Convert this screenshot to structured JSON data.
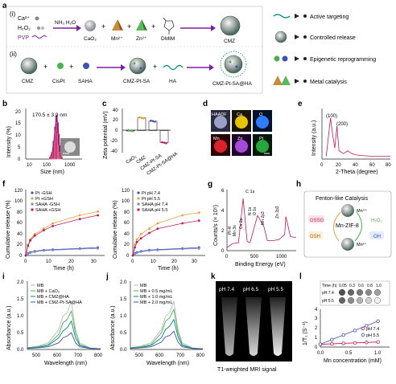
{
  "panel_letters": {
    "a": "a",
    "b": "b",
    "c": "c",
    "d": "d",
    "e": "e",
    "f": "f",
    "g": "g",
    "h": "h",
    "i": "i",
    "j": "j",
    "k": "k",
    "l": "l"
  },
  "scheme": {
    "row_i": {
      "label": "(i)",
      "reagents_top": "Ca²⁺",
      "reagents_mid": "H₂O₂",
      "reagents_bot": "PVP",
      "arrow1": "NH₃ H₂O",
      "cao2": "CaO₂",
      "mn": "Mn²⁺",
      "zn": "Zn²⁺",
      "dmim": "DMIM",
      "product": "CMZ",
      "plus": "+"
    },
    "row_ii": {
      "label": "(ii)",
      "cmz": "CMZ",
      "cispt": "CisPt",
      "saha": "SAHA",
      "inter": "CMZ-Pt-SA",
      "ha": "HA",
      "product": "CMZ-Pt-SA@HA",
      "plus": "+"
    },
    "legend": [
      "Active targeting",
      "Controlled release",
      "Epigenetic reprogramming",
      "Metal catalysis"
    ]
  },
  "panel_b": {
    "annotation": "170.5 ± 3.9 nm",
    "xlabel": "Size (nm)",
    "ylabel": "Intensity (%)",
    "xticks": [
      "10",
      "100",
      "1000"
    ],
    "yticks": [
      "0",
      "5",
      "10",
      "15",
      "20"
    ]
  },
  "panel_c": {
    "ylabel": "Zeta potential (mV)",
    "yticks": [
      "40",
      "20",
      "0",
      "-20",
      "-40"
    ],
    "categories": [
      "CaO₂",
      "CMZ",
      "CMZ-Pt-SA",
      "CMZ-Pt-SA@HA"
    ]
  },
  "panel_d": {
    "labels": [
      "HAADF",
      "Ca",
      "O",
      "Mn",
      "Zn",
      "Pt"
    ]
  },
  "panel_e": {
    "xlabel": "2-Theta (degree)",
    "ylabel": "Intensity (a.u.)",
    "xticks": [
      "0",
      "20",
      "40",
      "60",
      "80"
    ],
    "peak1": "(100)",
    "peak2": "(200)"
  },
  "panel_f": {
    "left_legend": [
      "Pt -GSH",
      "Pt +GSH",
      "SAHA -GSH",
      "SAHA +GSH"
    ],
    "right_legend": [
      "Pt pH 7.4",
      "Pt pH 5.5",
      "SAHA pH 7.4",
      "SAHA pH 5.5"
    ],
    "xlabel": "Time (h)",
    "ylabel": "Cumulative release (%)",
    "xticks": [
      "0",
      "10",
      "20",
      "30"
    ],
    "yticks": [
      "0",
      "20",
      "40",
      "60",
      "80",
      "100",
      "120"
    ]
  },
  "panel_g": {
    "xlabel": "Binding Energy (eV)",
    "ylabel": "Counts/s (× 10⁵)",
    "xticks": [
      "0",
      "500",
      "1000"
    ],
    "yticks": [
      "0",
      "2",
      "4",
      "6"
    ],
    "peaks": [
      "Pt 4f",
      "Mn 3s",
      "Ca 2p",
      "O 1s",
      "N 1s",
      "C 1s",
      "Mn 2p3",
      "Zn 2p3"
    ]
  },
  "panel_h": {
    "title": "Fenton-like Catalysis",
    "center": "Mn-ZIF-8",
    "gssg": "GSSG",
    "gsh": "GSH",
    "h2o2": "H₂O₂",
    "oh": "·OH",
    "mn4": "Mn⁴⁺",
    "mn2": "Mn²⁺"
  },
  "panel_i": {
    "legend": [
      "MB",
      "MB + CaO₂",
      "MB + CMZ@HA",
      "MB + CMZ-Pt-SA@HA"
    ],
    "xlabel": "Wavelength (nm)",
    "ylabel": "Absorbance (a.u.)",
    "xticks": [
      "500",
      "600",
      "700",
      "800"
    ],
    "yticks": [
      "0.0",
      "0.5",
      "1.0",
      "1.5",
      "2.0"
    ]
  },
  "panel_j": {
    "legend": [
      "MB",
      "MB + 0.5 mg/mL",
      "MB + 1.0 mg/mL",
      "MB + 2.0 mg/mL"
    ],
    "xlabel": "Wavelength (nm)",
    "ylabel": "Absorbance (a.u.)",
    "xticks": [
      "500",
      "600",
      "700",
      "800"
    ],
    "yticks": [
      "0.0",
      "0.5",
      "1.0",
      "1.5",
      "2.0"
    ]
  },
  "panel_k": {
    "labels": [
      "pH 7.4",
      "pH 6.5",
      "pH 5.5"
    ],
    "caption": "T1-weighted MRI signal"
  },
  "panel_l": {
    "time_label": "Time (h)",
    "times": [
      "0.05",
      "0.3",
      "0.6",
      "0.8",
      "1.0"
    ],
    "rows": [
      "pH 7.4",
      "pH 5.5"
    ],
    "xlabel": "Mn concentration (mM)",
    "ylabel": "1/T₁ (S⁻¹)",
    "xticks": [
      "0.0",
      "0.5",
      "1.0"
    ],
    "yticks": [
      "0",
      "1",
      "2",
      "3",
      "4"
    ],
    "legend": [
      "pH 7.4",
      "pH 5.5"
    ]
  },
  "chart_data": [
    {
      "type": "bar",
      "panel": "b",
      "x": [
        100,
        120,
        140,
        160,
        180,
        200,
        220,
        240,
        260,
        290
      ],
      "values": [
        1,
        3,
        8,
        14,
        19,
        16,
        11,
        6,
        3,
        1
      ],
      "xscale": "log",
      "xlim": [
        10,
        2000
      ],
      "ylim": [
        0,
        22
      ]
    },
    {
      "type": "bar",
      "panel": "c",
      "categories": [
        "CaO₂",
        "CMZ",
        "CMZ-Pt-SA",
        "CMZ-Pt-SA@HA"
      ],
      "values": [
        0,
        23,
        17,
        -22
      ],
      "ylim": [
        -40,
        40
      ]
    },
    {
      "type": "line",
      "panel": "e",
      "x": [
        5,
        7.5,
        10,
        12.5,
        15,
        17.5,
        20,
        25,
        30,
        35,
        40,
        50,
        60,
        70,
        80
      ],
      "values": [
        1,
        8,
        15,
        9,
        4,
        12,
        3,
        2,
        3,
        2,
        1.5,
        1.2,
        1,
        1,
        1
      ],
      "xlim": [
        0,
        80
      ]
    },
    {
      "type": "line",
      "panel": "f-left",
      "x": [
        0,
        1,
        2,
        4,
        8,
        12,
        24,
        32
      ],
      "series": [
        {
          "name": "Pt -GSH",
          "values": [
            0,
            4,
            6,
            8,
            10,
            11,
            13,
            15
          ]
        },
        {
          "name": "Pt +GSH",
          "values": [
            0,
            20,
            30,
            40,
            50,
            60,
            75,
            82
          ]
        },
        {
          "name": "SAHA -GSH",
          "values": [
            0,
            3,
            5,
            7,
            9,
            10,
            12,
            13
          ]
        },
        {
          "name": "SAHA +GSH",
          "values": [
            0,
            18,
            28,
            37,
            47,
            55,
            68,
            75
          ]
        }
      ],
      "xlim": [
        0,
        35
      ],
      "ylim": [
        0,
        120
      ]
    },
    {
      "type": "line",
      "panel": "f-right",
      "x": [
        0,
        1,
        2,
        4,
        8,
        12,
        24,
        32
      ],
      "series": [
        {
          "name": "Pt pH 7.4",
          "values": [
            0,
            4,
            6,
            8,
            10,
            11,
            13,
            15
          ]
        },
        {
          "name": "Pt pH 5.5",
          "values": [
            0,
            20,
            30,
            40,
            50,
            60,
            75,
            80
          ]
        },
        {
          "name": "SAHA pH 7.4",
          "values": [
            0,
            3,
            5,
            7,
            9,
            10,
            12,
            13
          ]
        },
        {
          "name": "SAHA pH 5.5",
          "values": [
            0,
            15,
            25,
            32,
            42,
            50,
            60,
            65
          ]
        }
      ],
      "xlim": [
        0,
        35
      ],
      "ylim": [
        0,
        120
      ]
    },
    {
      "type": "line",
      "panel": "g",
      "x": [
        0,
        70,
        100,
        200,
        280,
        350,
        400,
        530,
        640,
        700,
        800,
        900,
        1000,
        1020,
        1045,
        1100,
        1200
      ],
      "values": [
        0.3,
        0.6,
        0.7,
        0.8,
        5.2,
        0.9,
        0.8,
        3.5,
        2.4,
        1.0,
        1.0,
        1.1,
        1.6,
        3.4,
        2.8,
        1.4,
        1.3
      ],
      "xlim": [
        0,
        1200
      ],
      "ylim": [
        0,
        6
      ]
    },
    {
      "type": "line",
      "panel": "i",
      "x": [
        450,
        500,
        550,
        600,
        620,
        640,
        660,
        680,
        700,
        750,
        800
      ],
      "series": [
        {
          "name": "MB",
          "values": [
            0.05,
            0.1,
            0.2,
            0.6,
            1.0,
            1.1,
            1.45,
            0.6,
            0.2,
            0.05,
            0.02
          ]
        },
        {
          "name": "MB + CaO₂",
          "values": [
            0.05,
            0.08,
            0.15,
            0.45,
            0.8,
            0.9,
            1.15,
            0.5,
            0.15,
            0.04,
            0.02
          ]
        },
        {
          "name": "MB + CMZ@HA",
          "values": [
            0.04,
            0.06,
            0.12,
            0.35,
            0.55,
            0.65,
            0.85,
            0.35,
            0.12,
            0.03,
            0.02
          ]
        },
        {
          "name": "MB + CMZ-Pt-SA@HA",
          "values": [
            0.03,
            0.05,
            0.08,
            0.2,
            0.35,
            0.4,
            0.5,
            0.2,
            0.08,
            0.03,
            0.02
          ]
        }
      ],
      "xlim": [
        450,
        800
      ],
      "ylim": [
        0,
        2
      ]
    },
    {
      "type": "line",
      "panel": "j",
      "x": [
        450,
        500,
        550,
        600,
        620,
        640,
        660,
        680,
        700,
        750,
        800
      ],
      "series": [
        {
          "name": "MB",
          "values": [
            0.05,
            0.1,
            0.2,
            0.6,
            1.0,
            1.1,
            1.45,
            0.6,
            0.2,
            0.05,
            0.02
          ]
        },
        {
          "name": "MB + 0.5 mg/mL",
          "values": [
            0.05,
            0.08,
            0.15,
            0.5,
            0.85,
            0.95,
            1.2,
            0.5,
            0.15,
            0.04,
            0.02
          ]
        },
        {
          "name": "MB + 1.0 mg/mL",
          "values": [
            0.04,
            0.06,
            0.12,
            0.35,
            0.6,
            0.7,
            0.9,
            0.38,
            0.12,
            0.03,
            0.02
          ]
        },
        {
          "name": "MB + 2.0 mg/mL",
          "values": [
            0.03,
            0.05,
            0.08,
            0.22,
            0.38,
            0.42,
            0.55,
            0.22,
            0.08,
            0.03,
            0.02
          ]
        }
      ],
      "xlim": [
        450,
        800
      ],
      "ylim": [
        0,
        2
      ]
    },
    {
      "type": "scatter",
      "panel": "l",
      "x": [
        0,
        0.2,
        0.4,
        0.6,
        0.8,
        1.0
      ],
      "series": [
        {
          "name": "pH 7.4",
          "values": [
            0.3,
            0.35,
            0.4,
            0.45,
            0.5,
            0.55
          ]
        },
        {
          "name": "pH 5.5",
          "values": [
            0.3,
            0.8,
            1.3,
            1.8,
            2.3,
            2.8
          ]
        }
      ],
      "xlim": [
        0,
        1.2
      ],
      "ylim": [
        0,
        4
      ]
    }
  ],
  "colors": {
    "pink": "#c2185b",
    "orange": "#e6a23c",
    "blue": "#3f51b5",
    "green": "#4caf50",
    "purple": "#7b1fa2",
    "teal": "#00897b"
  }
}
